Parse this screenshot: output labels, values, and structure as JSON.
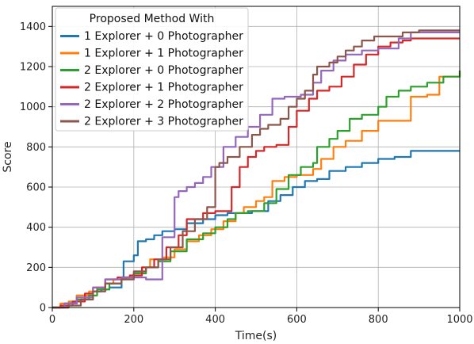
{
  "chart_data": {
    "type": "line",
    "xlabel": "Time(s)",
    "ylabel": "Score",
    "xlim": [
      0,
      1000
    ],
    "ylim": [
      0,
      1500
    ],
    "xticks": [
      0,
      200,
      400,
      600,
      800,
      1000
    ],
    "yticks": [
      0,
      200,
      400,
      600,
      800,
      1000,
      1200,
      1400
    ],
    "grid": true,
    "legend": {
      "title": "Proposed Method With",
      "placement": "top-left"
    },
    "series": [
      {
        "name": "1 Explorer + 0 Photographer",
        "color": "#1f77b4",
        "x": [
          0,
          40,
          60,
          80,
          100,
          120,
          140,
          170,
          175,
          200,
          210,
          230,
          250,
          270,
          300,
          330,
          370,
          400,
          430,
          460,
          490,
          530,
          560,
          590,
          620,
          650,
          680,
          720,
          760,
          800,
          840,
          880,
          1000
        ],
        "y": [
          0,
          20,
          60,
          60,
          80,
          90,
          100,
          150,
          230,
          260,
          330,
          340,
          360,
          380,
          390,
          420,
          440,
          460,
          470,
          470,
          480,
          530,
          560,
          600,
          630,
          640,
          680,
          700,
          720,
          740,
          750,
          780,
          780
        ]
      },
      {
        "name": "1 Explorer + 1 Photographer",
        "color": "#ff7f0e",
        "x": [
          0,
          20,
          40,
          60,
          90,
          110,
          130,
          150,
          180,
          200,
          220,
          240,
          270,
          300,
          330,
          360,
          390,
          420,
          450,
          470,
          500,
          520,
          540,
          570,
          600,
          640,
          660,
          690,
          720,
          760,
          800,
          850,
          880,
          920,
          950,
          1000
        ],
        "y": [
          0,
          20,
          30,
          60,
          80,
          100,
          120,
          140,
          150,
          170,
          200,
          240,
          250,
          290,
          330,
          360,
          390,
          430,
          470,
          500,
          530,
          550,
          630,
          650,
          660,
          690,
          740,
          800,
          830,
          880,
          930,
          930,
          1050,
          1060,
          1150,
          1180
        ]
      },
      {
        "name": "2 Explorer + 0 Photographer",
        "color": "#2ca02c",
        "x": [
          0,
          30,
          60,
          90,
          110,
          140,
          170,
          200,
          230,
          260,
          290,
          330,
          370,
          400,
          430,
          450,
          480,
          520,
          550,
          580,
          610,
          640,
          650,
          680,
          700,
          730,
          760,
          800,
          820,
          850,
          880,
          920,
          960,
          1000
        ],
        "y": [
          0,
          20,
          40,
          60,
          90,
          120,
          150,
          170,
          200,
          230,
          280,
          340,
          370,
          400,
          440,
          470,
          480,
          520,
          590,
          660,
          700,
          720,
          800,
          840,
          880,
          940,
          960,
          1000,
          1050,
          1080,
          1100,
          1120,
          1150,
          1180
        ]
      },
      {
        "name": "2 Explorer + 1 Photographer",
        "color": "#d62728",
        "x": [
          0,
          20,
          50,
          80,
          100,
          130,
          160,
          190,
          220,
          250,
          280,
          310,
          330,
          370,
          400,
          410,
          420,
          440,
          460,
          480,
          500,
          520,
          550,
          580,
          600,
          630,
          650,
          680,
          710,
          740,
          770,
          800,
          830,
          860,
          880,
          1000
        ],
        "y": [
          0,
          10,
          30,
          70,
          100,
          140,
          150,
          160,
          200,
          240,
          300,
          360,
          440,
          470,
          480,
          480,
          480,
          600,
          700,
          750,
          780,
          800,
          810,
          900,
          980,
          1040,
          1080,
          1100,
          1150,
          1210,
          1260,
          1300,
          1320,
          1330,
          1340,
          1340
        ]
      },
      {
        "name": "2 Explorer + 2 Photographer",
        "color": "#9467bd",
        "x": [
          0,
          30,
          60,
          100,
          130,
          170,
          200,
          230,
          260,
          270,
          300,
          310,
          330,
          350,
          370,
          390,
          420,
          450,
          480,
          510,
          540,
          570,
          590,
          610,
          640,
          660,
          690,
          720,
          760,
          800,
          850,
          880,
          1000
        ],
        "y": [
          0,
          20,
          50,
          100,
          140,
          150,
          150,
          140,
          140,
          350,
          550,
          580,
          600,
          620,
          650,
          700,
          800,
          850,
          900,
          960,
          1040,
          1050,
          1050,
          1060,
          1120,
          1180,
          1230,
          1260,
          1280,
          1290,
          1340,
          1370,
          1370
        ]
      },
      {
        "name": "2 Explorer + 3 Photographer",
        "color": "#8c564b",
        "x": [
          0,
          40,
          70,
          100,
          130,
          170,
          200,
          230,
          260,
          290,
          320,
          350,
          380,
          400,
          410,
          430,
          460,
          490,
          510,
          530,
          560,
          580,
          600,
          620,
          640,
          650,
          680,
          700,
          720,
          740,
          760,
          790,
          820,
          860,
          900,
          1000
        ],
        "y": [
          0,
          10,
          40,
          80,
          120,
          140,
          180,
          200,
          240,
          300,
          380,
          440,
          500,
          700,
          720,
          750,
          800,
          860,
          890,
          910,
          940,
          1000,
          1040,
          1080,
          1160,
          1200,
          1220,
          1250,
          1280,
          1300,
          1330,
          1350,
          1350,
          1370,
          1380,
          1380
        ]
      }
    ]
  }
}
